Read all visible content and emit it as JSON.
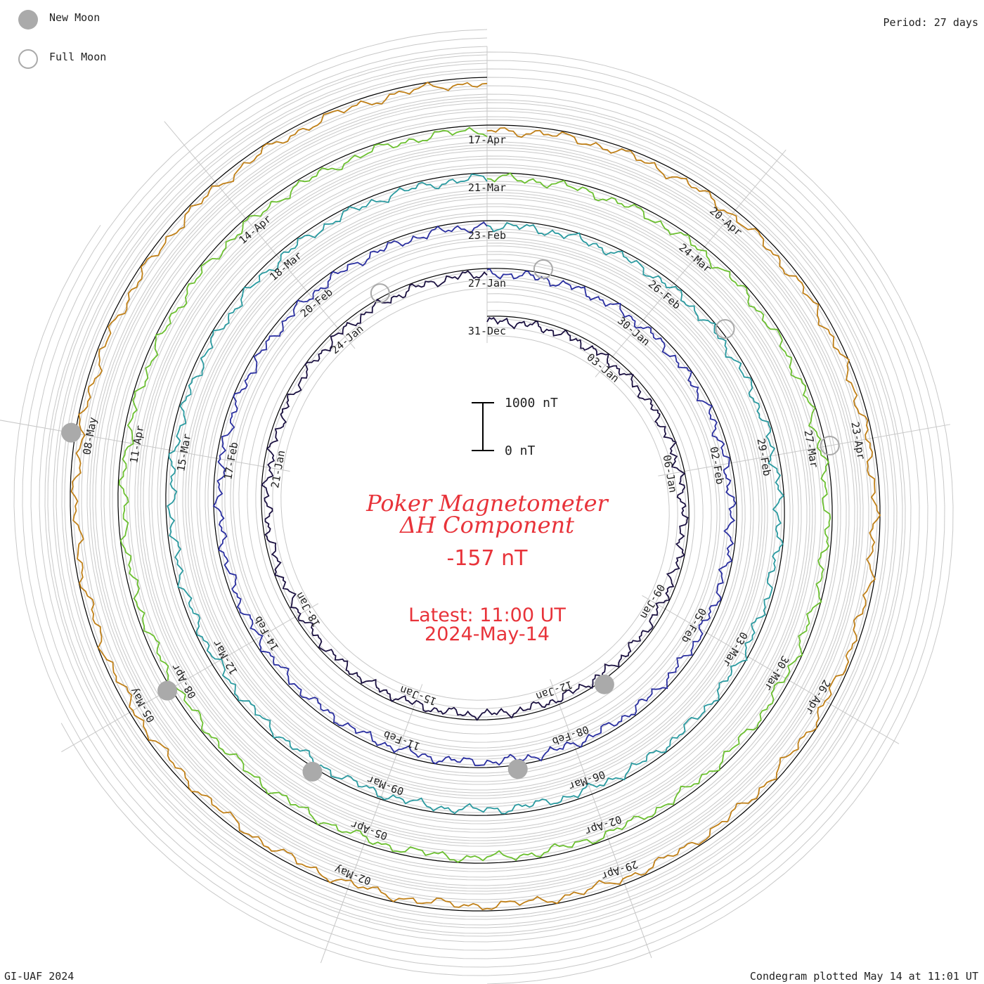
{
  "legend": {
    "new_moon_label": "New Moon",
    "full_moon_label": "Full Moon",
    "new_moon_color": "#aaaaaa",
    "full_moon_color": "#aaaaaa"
  },
  "header": {
    "period_label": "Period: 27 days"
  },
  "footer": {
    "credit": "GI-UAF 2024",
    "plotted": "Condegram plotted May 14 at 11:01 UT"
  },
  "center": {
    "title_line1": "Poker Magnetometer",
    "title_line2": "ΔH Component",
    "value": "-157 nT",
    "latest": "Latest: 11:00 UT",
    "date": "2024-May-14",
    "text_color": "#e8333a"
  },
  "chart_data": {
    "type": "line",
    "title": "Poker Magnetometer ΔH Component",
    "subtitle": "Period: 27 days",
    "scale_bar": {
      "top_label": "1000 nT",
      "bottom_label": "0 nT",
      "top_value": 1000,
      "bottom_value": 0
    },
    "current_value_nT": -157,
    "latest": "11:00 UT 2024-May-14",
    "grid": true,
    "date_labels": [
      {
        "text": "31-Dec",
        "turn": 0,
        "day": 0
      },
      {
        "text": "03-Jan",
        "turn": 0,
        "day": 3
      },
      {
        "text": "06-Jan",
        "turn": 0,
        "day": 6
      },
      {
        "text": "09-Jan",
        "turn": 0,
        "day": 9
      },
      {
        "text": "12-Jan",
        "turn": 0,
        "day": 12
      },
      {
        "text": "15-Jan",
        "turn": 0,
        "day": 15
      },
      {
        "text": "18-Jan",
        "turn": 0,
        "day": 18
      },
      {
        "text": "21-Jan",
        "turn": 0,
        "day": 21
      },
      {
        "text": "24-Jan",
        "turn": 0,
        "day": 24
      },
      {
        "text": "27-Jan",
        "turn": 1,
        "day": 0
      },
      {
        "text": "30-Jan",
        "turn": 1,
        "day": 3
      },
      {
        "text": "02-Feb",
        "turn": 1,
        "day": 6
      },
      {
        "text": "05-Feb",
        "turn": 1,
        "day": 9
      },
      {
        "text": "08-Feb",
        "turn": 1,
        "day": 12
      },
      {
        "text": "11-Feb",
        "turn": 1,
        "day": 15
      },
      {
        "text": "14-Feb",
        "turn": 1,
        "day": 18
      },
      {
        "text": "17-Feb",
        "turn": 1,
        "day": 21
      },
      {
        "text": "20-Feb",
        "turn": 1,
        "day": 24
      },
      {
        "text": "23-Feb",
        "turn": 2,
        "day": 0
      },
      {
        "text": "26-Feb",
        "turn": 2,
        "day": 3
      },
      {
        "text": "29-Feb",
        "turn": 2,
        "day": 6
      },
      {
        "text": "03-Mar",
        "turn": 2,
        "day": 9
      },
      {
        "text": "06-Mar",
        "turn": 2,
        "day": 12
      },
      {
        "text": "09-Mar",
        "turn": 2,
        "day": 15
      },
      {
        "text": "12-Mar",
        "turn": 2,
        "day": 18
      },
      {
        "text": "15-Mar",
        "turn": 2,
        "day": 21
      },
      {
        "text": "18-Mar",
        "turn": 2,
        "day": 24
      },
      {
        "text": "21-Mar",
        "turn": 3,
        "day": 0
      },
      {
        "text": "24-Mar",
        "turn": 3,
        "day": 3
      },
      {
        "text": "27-Mar",
        "turn": 3,
        "day": 6
      },
      {
        "text": "30-Mar",
        "turn": 3,
        "day": 9
      },
      {
        "text": "02-Apr",
        "turn": 3,
        "day": 12
      },
      {
        "text": "05-Apr",
        "turn": 3,
        "day": 15
      },
      {
        "text": "08-Apr",
        "turn": 3,
        "day": 18
      },
      {
        "text": "11-Apr",
        "turn": 3,
        "day": 21
      },
      {
        "text": "14-Apr",
        "turn": 3,
        "day": 24
      },
      {
        "text": "17-Apr",
        "turn": 4,
        "day": 0
      },
      {
        "text": "20-Apr",
        "turn": 4,
        "day": 3
      },
      {
        "text": "23-Apr",
        "turn": 4,
        "day": 6
      },
      {
        "text": "26-Apr",
        "turn": 4,
        "day": 9
      },
      {
        "text": "29-Apr",
        "turn": 4,
        "day": 12
      },
      {
        "text": "02-May",
        "turn": 4,
        "day": 15
      },
      {
        "text": "05-May",
        "turn": 4,
        "day": 18
      },
      {
        "text": "08-May",
        "turn": 4,
        "day": 21
      }
    ],
    "series": [
      {
        "color": "#1a1040",
        "start": "2023-12-31",
        "days": 27
      },
      {
        "color": "#2a2fa0",
        "start": "2024-01-27",
        "days": 27
      },
      {
        "color": "#2a9aa0",
        "start": "2024-02-23",
        "days": 27
      },
      {
        "color": "#6cc030",
        "start": "2024-03-21",
        "days": 27
      },
      {
        "color": "#c08018",
        "start": "2024-04-17",
        "days": 27
      }
    ],
    "moons": {
      "new": [
        {
          "date": "11-Jan",
          "turn": 0
        },
        {
          "date": "09-Feb",
          "turn": 1
        },
        {
          "date": "10-Mar",
          "turn": 2
        },
        {
          "date": "08-Apr",
          "turn": 3
        },
        {
          "date": "08-May",
          "turn": 4
        }
      ],
      "full": [
        {
          "date": "25-Jan",
          "turn": 0
        },
        {
          "date": "24-Feb",
          "turn": 1
        },
        {
          "date": "25-Mar",
          "turn": 2
        },
        {
          "date": "23-Apr",
          "turn": 3
        }
      ]
    }
  }
}
